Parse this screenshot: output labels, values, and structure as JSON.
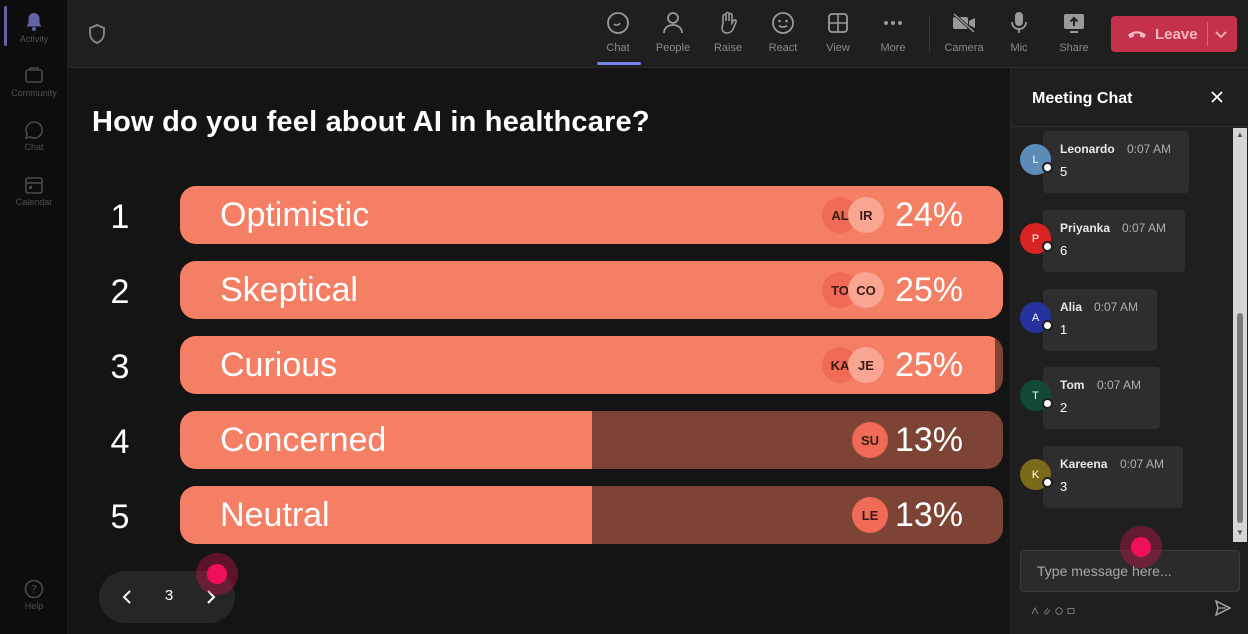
{
  "rail": {
    "items": [
      {
        "label": "Activity",
        "icon": "bell-icon",
        "active": true
      },
      {
        "label": "Community",
        "icon": "community-icon",
        "active": false
      },
      {
        "label": "Chat",
        "icon": "chat-icon",
        "active": false
      },
      {
        "label": "Calendar",
        "icon": "calendar-icon",
        "active": false
      }
    ],
    "help_label": "Help"
  },
  "toolbar": {
    "chat_label": "Chat",
    "people_label": "People",
    "raise_label": "Raise",
    "react_label": "React",
    "view_label": "View",
    "more_label": "More",
    "camera_label": "Camera",
    "mic_label": "Mic",
    "share_label": "Share",
    "leave_label": "Leave"
  },
  "poll": {
    "question": "How do you feel about AI in healthcare?",
    "options": [
      {
        "num": "1",
        "label": "Optimistic",
        "pct_text": "24%",
        "fill": 1.0,
        "chips": [
          "AL",
          "IR"
        ]
      },
      {
        "num": "2",
        "label": "Skeptical",
        "pct_text": "25%",
        "fill": 1.0,
        "chips": [
          "TO",
          "CO"
        ]
      },
      {
        "num": "3",
        "label": "Curious",
        "pct_text": "25%",
        "fill": 0.99,
        "chips": [
          "KA",
          "JE"
        ]
      },
      {
        "num": "4",
        "label": "Concerned",
        "pct_text": "13%",
        "fill": 0.5,
        "chips": [
          "SU"
        ]
      },
      {
        "num": "5",
        "label": "Neutral",
        "pct_text": "13%",
        "fill": 0.5,
        "chips": [
          "LE"
        ]
      }
    ]
  },
  "pager": {
    "page": "3"
  },
  "chat": {
    "title": "Meeting Chat",
    "messages": [
      {
        "initial": "L",
        "name": "Leonardo",
        "time": "0:07 AM",
        "text": "5",
        "color": "#5b8db8"
      },
      {
        "initial": "P",
        "name": "Priyanka",
        "time": "0:07 AM",
        "text": "6",
        "color": "#d92323"
      },
      {
        "initial": "A",
        "name": "Alia",
        "time": "0:07 AM",
        "text": "1",
        "color": "#26339e"
      },
      {
        "initial": "T",
        "name": "Tom",
        "time": "0:07 AM",
        "text": "2",
        "color": "#124a36"
      },
      {
        "initial": "K",
        "name": "Kareena",
        "time": "0:07 AM",
        "text": "3",
        "color": "#7a6a19"
      }
    ],
    "placeholder": "Type message here..."
  },
  "colors": {
    "bar_fill": "#f47f64",
    "bar_track": "#7d4435",
    "leave": "#c4314b",
    "accent": "#7b83eb"
  }
}
